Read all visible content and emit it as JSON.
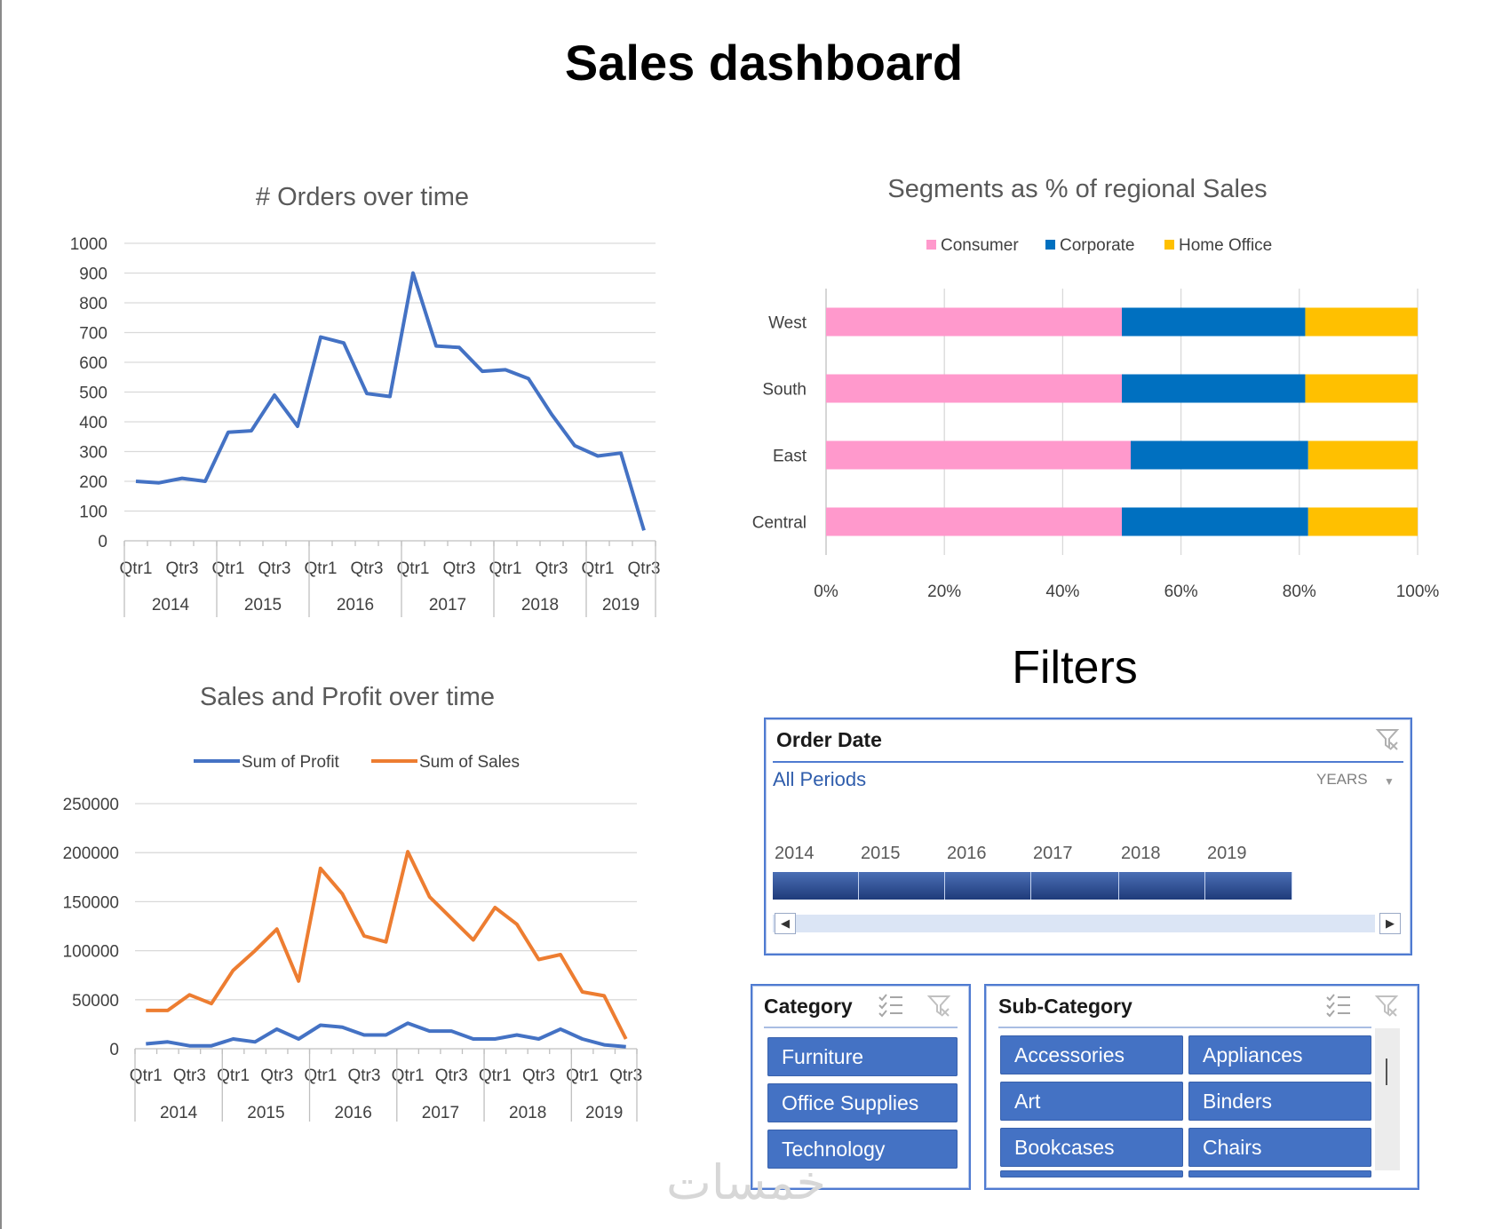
{
  "title": "Sales dashboard",
  "filters_title": "Filters",
  "watermark": "خمسات",
  "colors": {
    "line_blue": "#4472c4",
    "line_orange": "#ed7d31",
    "consumer": "#ff99cc",
    "corporate": "#0070c0",
    "home_office": "#ffc000",
    "slicer_button": "#4472c4",
    "timeline_bar": "#2f4f8f"
  },
  "orders_chart": {
    "chart_data": {
      "type": "line",
      "title": "# Orders over time",
      "ylim": [
        0,
        1000
      ],
      "yticks": [
        "1000",
        "900",
        "800",
        "700",
        "600",
        "500",
        "400",
        "300",
        "200",
        "100",
        "0"
      ],
      "quarter_labels": [
        "Qtr1",
        "Qtr3",
        "Qtr1",
        "Qtr3",
        "Qtr1",
        "Qtr3",
        "Qtr1",
        "Qtr3",
        "Qtr1",
        "Qtr3",
        "Qtr1",
        "Qtr3"
      ],
      "years": [
        "2014",
        "2015",
        "2016",
        "2017",
        "2018",
        "2019"
      ],
      "series": [
        {
          "name": "# Orders",
          "values": [
            200,
            195,
            210,
            200,
            365,
            370,
            490,
            385,
            685,
            665,
            495,
            485,
            900,
            655,
            650,
            570,
            575,
            545,
            425,
            320,
            285,
            295,
            35
          ]
        }
      ]
    }
  },
  "segments_chart": {
    "chart_data": {
      "type": "bar",
      "stacked": "percent",
      "title": "Segments as % of regional Sales",
      "categories": [
        "West",
        "South",
        "East",
        "Central"
      ],
      "series": [
        {
          "name": "Consumer",
          "values": [
            50,
            50,
            51.5,
            50
          ]
        },
        {
          "name": "Corporate",
          "values": [
            31,
            31,
            30,
            31.5
          ]
        },
        {
          "name": "Home Office",
          "values": [
            19,
            19,
            18.5,
            18.5
          ]
        }
      ],
      "xticks": [
        "0%",
        "20%",
        "40%",
        "60%",
        "80%",
        "100%"
      ],
      "legend": [
        "Consumer",
        "Corporate",
        "Home Office"
      ]
    }
  },
  "sales_chart": {
    "chart_data": {
      "type": "line",
      "title": "Sales and Profit over time",
      "ylim": [
        0,
        250000
      ],
      "yticks": [
        "250000",
        "200000",
        "150000",
        "100000",
        "50000",
        "0"
      ],
      "quarter_labels": [
        "Qtr1",
        "Qtr3",
        "Qtr1",
        "Qtr3",
        "Qtr1",
        "Qtr3",
        "Qtr1",
        "Qtr3",
        "Qtr1",
        "Qtr3",
        "Qtr1",
        "Qtr3"
      ],
      "years": [
        "2014",
        "2015",
        "2016",
        "2017",
        "2018",
        "2019"
      ],
      "legend": [
        "Sum of Profit",
        "Sum of Sales"
      ],
      "series": [
        {
          "name": "Sum of Profit",
          "values": [
            5000,
            7000,
            3000,
            3000,
            10000,
            7000,
            20000,
            10000,
            24000,
            22000,
            14000,
            14000,
            26000,
            18000,
            18000,
            10000,
            10000,
            14000,
            10000,
            20000,
            10000,
            4000,
            2000
          ]
        },
        {
          "name": "Sum of Sales",
          "values": [
            39000,
            39000,
            55000,
            46000,
            80000,
            100000,
            122000,
            69000,
            184000,
            158000,
            115000,
            109000,
            201000,
            155000,
            133000,
            111000,
            144000,
            127000,
            91000,
            96000,
            58000,
            54000,
            10000
          ]
        }
      ]
    }
  },
  "order_date_slicer": {
    "header": "Order Date",
    "periods": "All Periods",
    "level": "YEARS",
    "level_arrow": "▼",
    "years": [
      "2014",
      "2015",
      "2016",
      "2017",
      "2018",
      "2019"
    ],
    "scroll_left": "◀",
    "scroll_right": "▶"
  },
  "category_slicer": {
    "header": "Category",
    "items": [
      "Furniture",
      "Office Supplies",
      "Technology"
    ]
  },
  "subcategory_slicer": {
    "header": "Sub-Category",
    "items": [
      "Accessories",
      "Appliances",
      "Art",
      "Binders",
      "Bookcases",
      "Chairs"
    ]
  }
}
